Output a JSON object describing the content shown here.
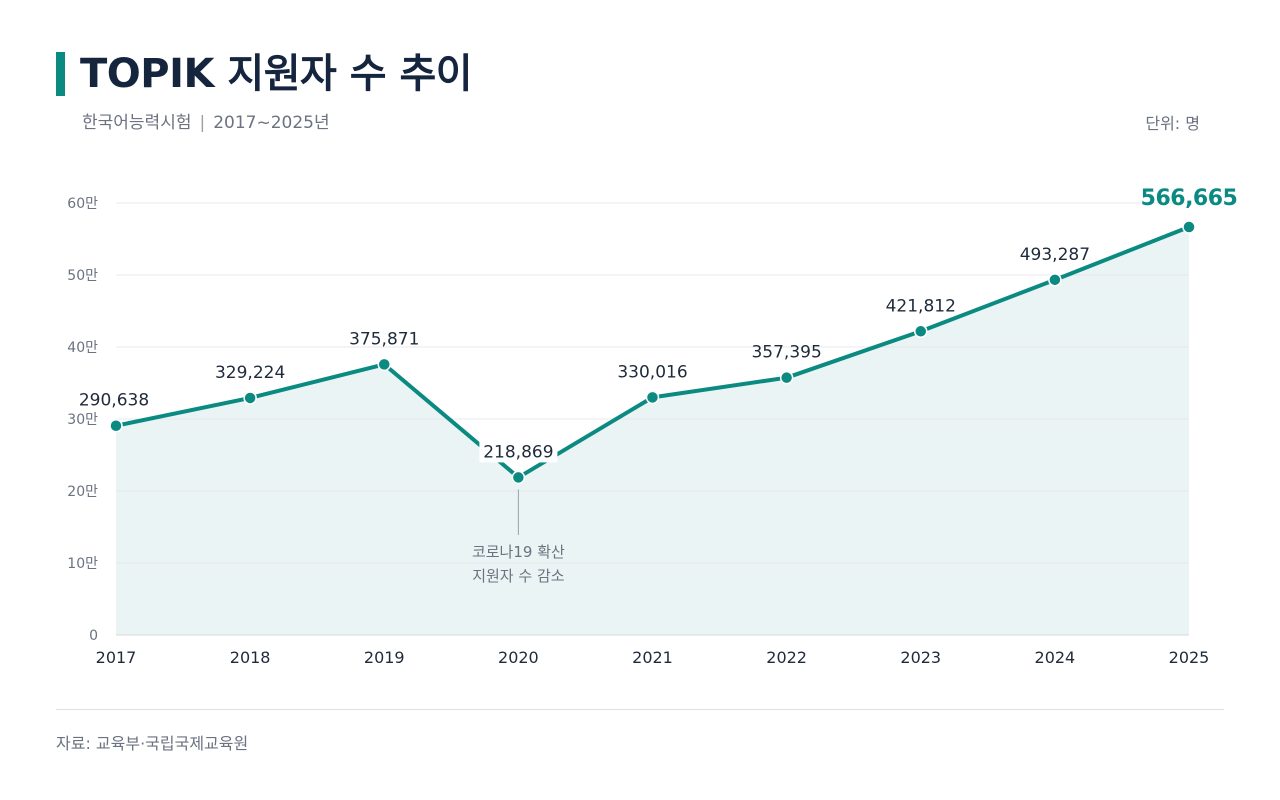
{
  "header": {
    "title": "TOPIK 지원자 수 추이",
    "subtitle_exam": "한국어능력시험",
    "subtitle_separator": "|",
    "subtitle_period": "2017~2025년",
    "unit": "단위: 명"
  },
  "footer": {
    "source": "자료: 교육부·국립국제교육원"
  },
  "colors": {
    "line": "#0b8a82",
    "area": "#eaf4f4",
    "grid": "#e6e9ec",
    "axis_text": "#6b7280",
    "label_text": "#1f2a3a",
    "highlight": "#0b8a82",
    "title": "#14253d"
  },
  "chart_data": {
    "type": "line",
    "title": "TOPIK 지원자 수 추이",
    "xlabel": "",
    "ylabel": "",
    "categories": [
      "2017",
      "2018",
      "2019",
      "2020",
      "2021",
      "2022",
      "2023",
      "2024",
      "2025"
    ],
    "series": [
      {
        "values": [
          290638,
          329224,
          375871,
          218869,
          330016,
          357395,
          421812,
          493287,
          566665
        ]
      }
    ],
    "value_labels": [
      "290,638",
      "329,224",
      "375,871",
      "218,869",
      "330,016",
      "357,395",
      "421,812",
      "493,287",
      "566,665"
    ],
    "ylim": [
      0,
      600000
    ],
    "y_ticks": [
      0,
      100000,
      200000,
      300000,
      400000,
      500000,
      600000
    ],
    "y_tick_labels": [
      "0",
      "10만",
      "20만",
      "30만",
      "40만",
      "50만",
      "60만"
    ],
    "grid": true,
    "area_fill": true,
    "highlight_last": true,
    "annotation": {
      "category": "2020",
      "lines": [
        "코로나19 확산",
        "지원자 수 감소"
      ]
    }
  }
}
